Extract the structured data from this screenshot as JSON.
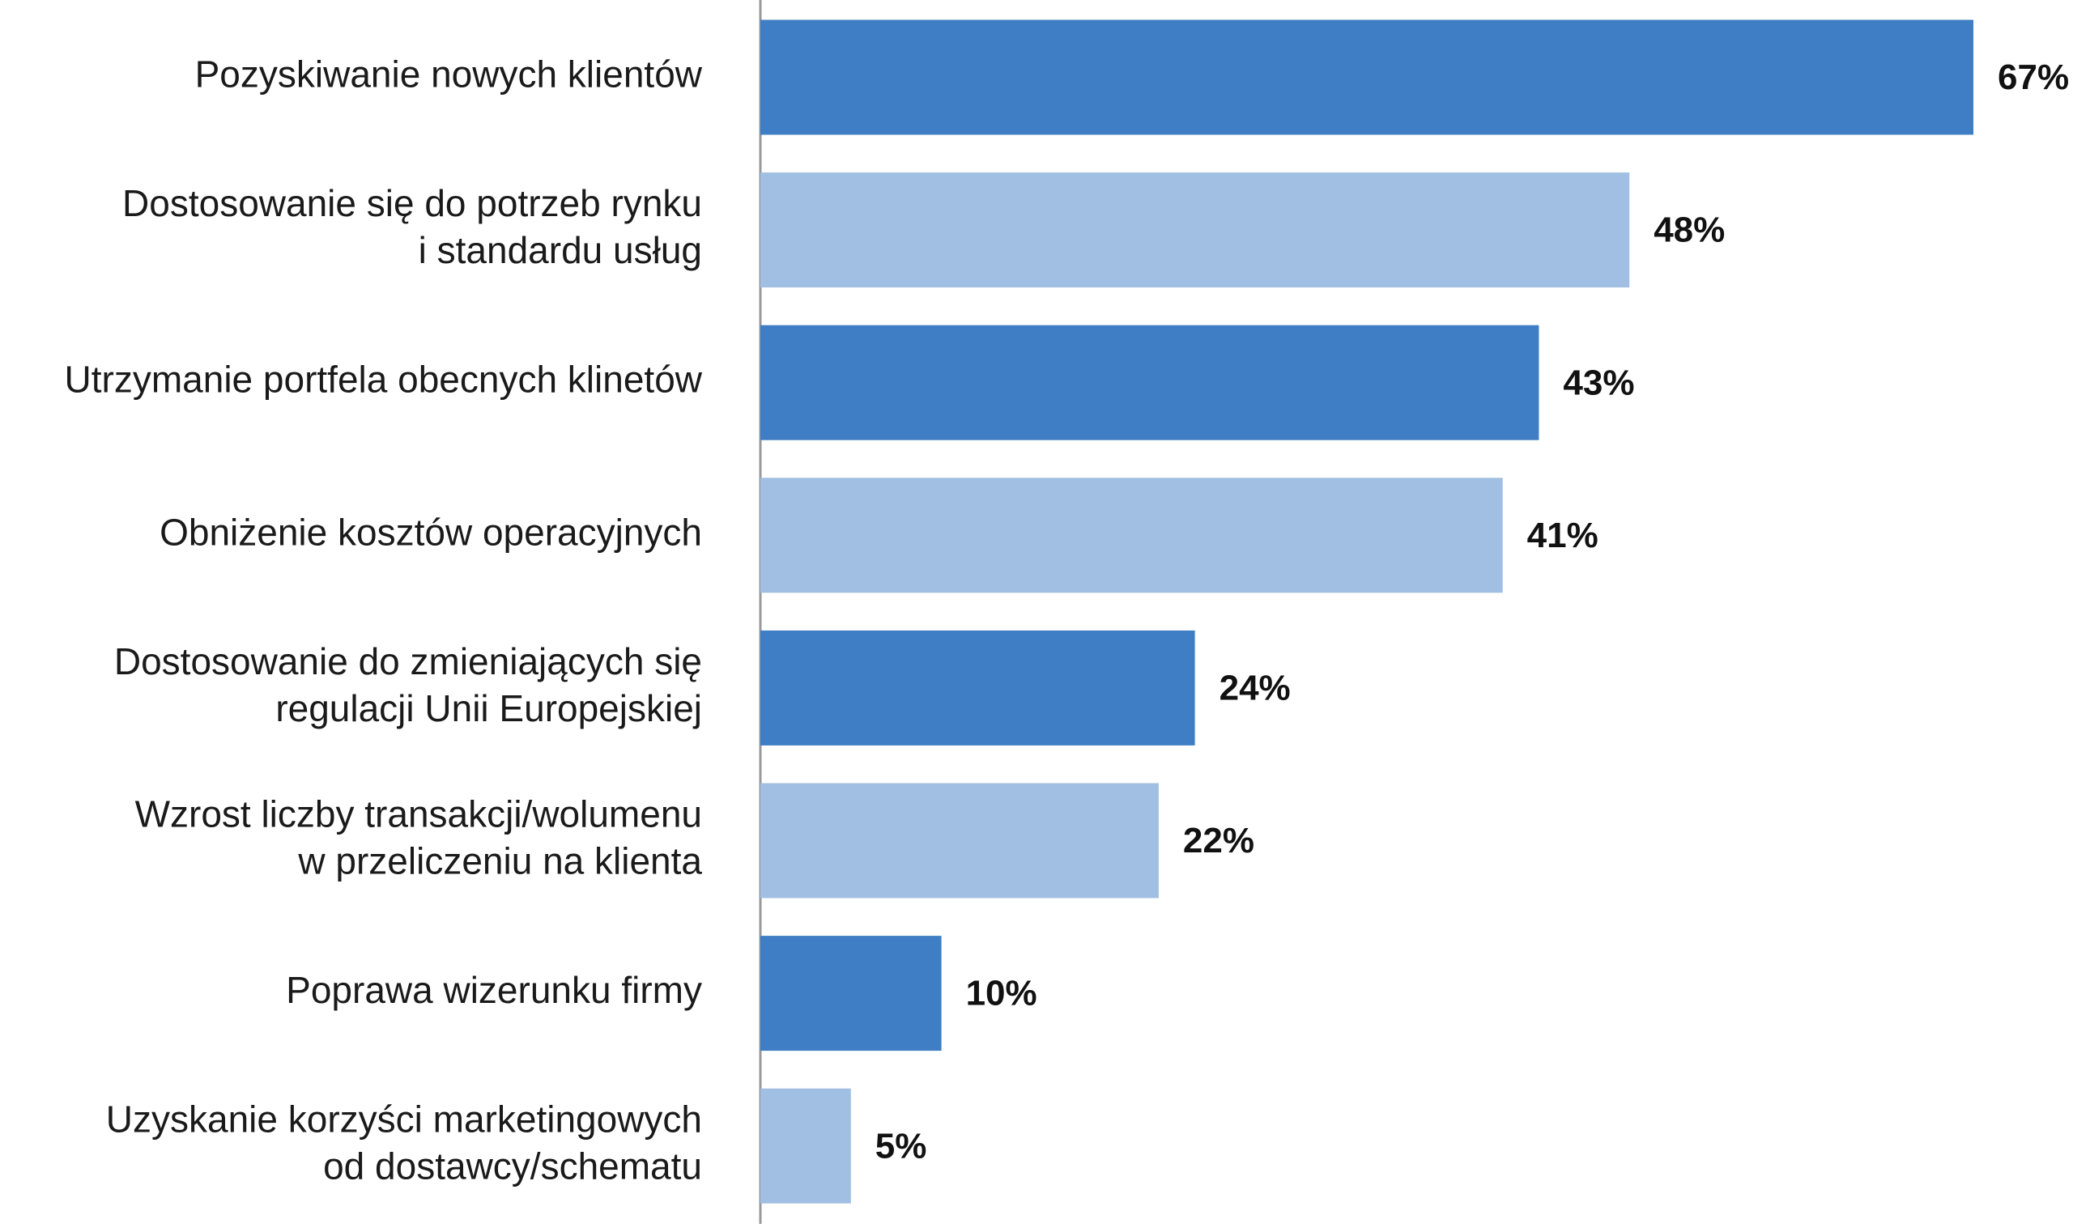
{
  "chart_data": {
    "type": "bar",
    "orientation": "horizontal",
    "categories": [
      [
        "Pozyskiwanie nowych klientów"
      ],
      [
        "Dostosowanie się do potrzeb rynku",
        "i standardu usług"
      ],
      [
        "Utrzymanie portfela obecnych klinetów"
      ],
      [
        "Obniżenie kosztów operacyjnych"
      ],
      [
        "Dostosowanie do zmieniających się",
        "regulacji Unii Europejskiej"
      ],
      [
        "Wzrost liczby transakcji/wolumenu",
        "w przeliczeniu na klienta"
      ],
      [
        "Poprawa wizerunku firmy"
      ],
      [
        "Uzyskanie korzyści marketingowych",
        "od dostawcy/schematu"
      ]
    ],
    "values": [
      67,
      48,
      43,
      41,
      24,
      22,
      10,
      5
    ],
    "value_labels": [
      "67%",
      "48%",
      "43%",
      "41%",
      "24%",
      "22%",
      "10%",
      "5%"
    ],
    "colors": [
      "#3f7dc4",
      "#a0bfe2",
      "#3f7dc4",
      "#a0bfe2",
      "#3f7dc4",
      "#a0bfe2",
      "#3f7dc4",
      "#a0bfe2"
    ]
  }
}
